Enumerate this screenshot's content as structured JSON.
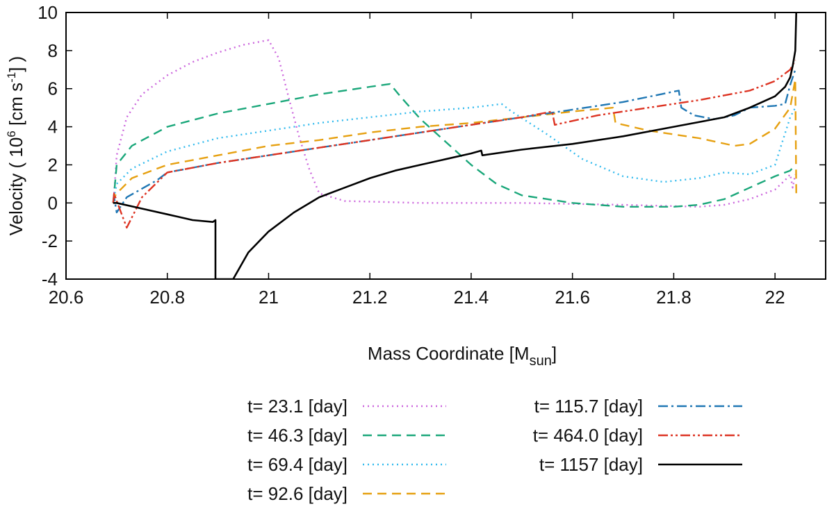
{
  "chart_data": {
    "type": "line",
    "xlabel": {
      "main": "Mass Coordinate [M",
      "sub": "sun",
      "end": "]"
    },
    "ylabel": {
      "p1": "Velocity ( 10",
      "sup1": "6",
      "p2": " [cm s",
      "sup2": "-1",
      "p3": "] )"
    },
    "xlim": [
      20.6,
      22.1
    ],
    "ylim": [
      -4,
      10
    ],
    "xticks": [
      20.6,
      20.8,
      21,
      21.2,
      21.4,
      21.6,
      21.8,
      22
    ],
    "xtick_labels": [
      "20.6",
      "20.8",
      "21",
      "21.2",
      "21.4",
      "21.6",
      "21.8",
      "22"
    ],
    "yticks": [
      -4,
      -2,
      0,
      2,
      4,
      6,
      8,
      10
    ],
    "ytick_labels": [
      "-4",
      "-2",
      "0",
      "2",
      "4",
      "6",
      "8",
      "10"
    ],
    "legend_position": "below",
    "series": [
      {
        "name": "t= 23.1 [day]",
        "color": "#cc66dd",
        "dash": "2,5",
        "x": [
          20.693,
          20.695,
          20.7,
          20.72,
          20.75,
          20.8,
          20.85,
          20.9,
          20.95,
          20.99,
          21.0,
          21.02,
          21.04,
          21.06,
          21.08,
          21.1,
          21.15,
          21.3,
          21.5,
          21.7,
          21.85,
          21.9,
          21.95,
          22.0,
          22.02,
          22.03,
          22.035,
          22.04
        ],
        "y": [
          0,
          0.5,
          2.5,
          4.5,
          5.7,
          6.7,
          7.4,
          7.9,
          8.3,
          8.5,
          8.55,
          7.6,
          5.5,
          3.5,
          1.8,
          0.5,
          0.1,
          0.0,
          0.0,
          -0.1,
          -0.2,
          -0.1,
          0.2,
          0.7,
          1.2,
          1.5,
          0.8,
          1.5
        ]
      },
      {
        "name": "t= 46.3 [day]",
        "color": "#1aa77a",
        "dash": "13,8",
        "x": [
          20.693,
          20.695,
          20.7,
          20.73,
          20.8,
          20.9,
          21.0,
          21.1,
          21.2,
          21.24,
          21.26,
          21.3,
          21.35,
          21.4,
          21.45,
          21.5,
          21.6,
          21.7,
          21.8,
          21.85,
          21.9,
          21.95,
          22.0,
          22.03,
          22.04
        ],
        "y": [
          0,
          0.5,
          2.0,
          3.0,
          4.0,
          4.7,
          5.2,
          5.7,
          6.1,
          6.25,
          5.6,
          4.4,
          3.2,
          2.0,
          1.0,
          0.4,
          0.0,
          -0.2,
          -0.2,
          -0.1,
          0.2,
          0.8,
          1.4,
          1.7,
          2.0
        ]
      },
      {
        "name": "t= 69.4 [day]",
        "color": "#33bbee",
        "dash": "2,5",
        "x": [
          20.693,
          20.695,
          20.7,
          20.73,
          20.8,
          20.9,
          21.0,
          21.1,
          21.2,
          21.3,
          21.4,
          21.46,
          21.48,
          21.55,
          21.62,
          21.7,
          21.78,
          21.85,
          21.9,
          21.95,
          22.0,
          22.03,
          22.04
        ],
        "y": [
          0,
          0.3,
          1.0,
          1.8,
          2.7,
          3.4,
          3.8,
          4.2,
          4.5,
          4.8,
          5.0,
          5.2,
          4.8,
          3.6,
          2.3,
          1.4,
          1.1,
          1.3,
          1.6,
          1.5,
          2.0,
          4.5,
          5.0
        ]
      },
      {
        "name": "t= 92.6 [day]",
        "color": "#e6a010",
        "dash": "13,8",
        "x": [
          20.693,
          20.695,
          20.7,
          20.73,
          20.8,
          20.9,
          21.0,
          21.1,
          21.2,
          21.3,
          21.4,
          21.5,
          21.6,
          21.68,
          21.685,
          21.75,
          21.85,
          21.92,
          21.95,
          22.0,
          22.03,
          22.04,
          22.042
        ],
        "y": [
          0,
          0.3,
          0.5,
          1.3,
          2.0,
          2.5,
          3.0,
          3.3,
          3.7,
          4.0,
          4.2,
          4.5,
          4.8,
          5.0,
          4.2,
          3.8,
          3.4,
          3.0,
          3.1,
          3.9,
          5.0,
          6.5,
          0.5
        ]
      },
      {
        "name": "t= 115.7 [day]",
        "color": "#1f77b4",
        "dash": "14,5,3,5",
        "x": [
          20.693,
          20.695,
          20.7,
          20.72,
          20.78,
          20.8,
          20.9,
          21.0,
          21.1,
          21.2,
          21.3,
          21.4,
          21.5,
          21.6,
          21.7,
          21.81,
          21.815,
          21.84,
          21.88,
          21.92,
          21.95,
          22.0,
          22.02,
          22.03,
          22.04
        ],
        "y": [
          0,
          0.3,
          -0.5,
          0.3,
          1.2,
          1.6,
          2.1,
          2.5,
          2.9,
          3.3,
          3.7,
          4.1,
          4.5,
          4.9,
          5.3,
          5.9,
          5.0,
          4.6,
          4.4,
          4.6,
          5.0,
          5.1,
          5.2,
          6.2,
          7.0
        ]
      },
      {
        "name": "t= 464.0 [day]",
        "color": "#dd3322",
        "dash": "14,4,3,4,3,4",
        "x": [
          20.693,
          20.695,
          20.7,
          20.72,
          20.75,
          20.8,
          20.9,
          21.0,
          21.1,
          21.2,
          21.3,
          21.4,
          21.5,
          21.56,
          21.565,
          21.65,
          21.75,
          21.85,
          21.95,
          22.0,
          22.03,
          22.04
        ],
        "y": [
          0,
          0.5,
          0.1,
          -1.3,
          0.3,
          1.6,
          2.1,
          2.5,
          2.9,
          3.3,
          3.7,
          4.1,
          4.5,
          4.8,
          4.1,
          4.6,
          5.0,
          5.4,
          5.9,
          6.4,
          7.0,
          7.5
        ]
      },
      {
        "name": "t= 1157 [day]",
        "color": "#000000",
        "dash": "",
        "x": [
          20.693,
          20.7,
          20.75,
          20.8,
          20.85,
          20.89,
          20.895,
          20.895,
          20.93,
          20.96,
          21.0,
          21.05,
          21.1,
          21.15,
          21.2,
          21.25,
          21.3,
          21.35,
          21.4,
          21.42,
          21.422,
          21.5,
          21.6,
          21.7,
          21.8,
          21.9,
          21.95,
          22.0,
          22.02,
          22.03,
          22.035,
          22.04,
          22.041,
          22.042
        ],
        "y": [
          0,
          0.0,
          -0.3,
          -0.6,
          -0.9,
          -1.0,
          -0.9,
          -4.0,
          -4.0,
          -2.6,
          -1.5,
          -0.5,
          0.3,
          0.8,
          1.3,
          1.7,
          2.0,
          2.3,
          2.6,
          2.75,
          2.5,
          2.8,
          3.1,
          3.5,
          4.0,
          4.5,
          5.0,
          5.6,
          6.1,
          6.6,
          7.2,
          8.0,
          9.0,
          10.0
        ]
      }
    ]
  }
}
